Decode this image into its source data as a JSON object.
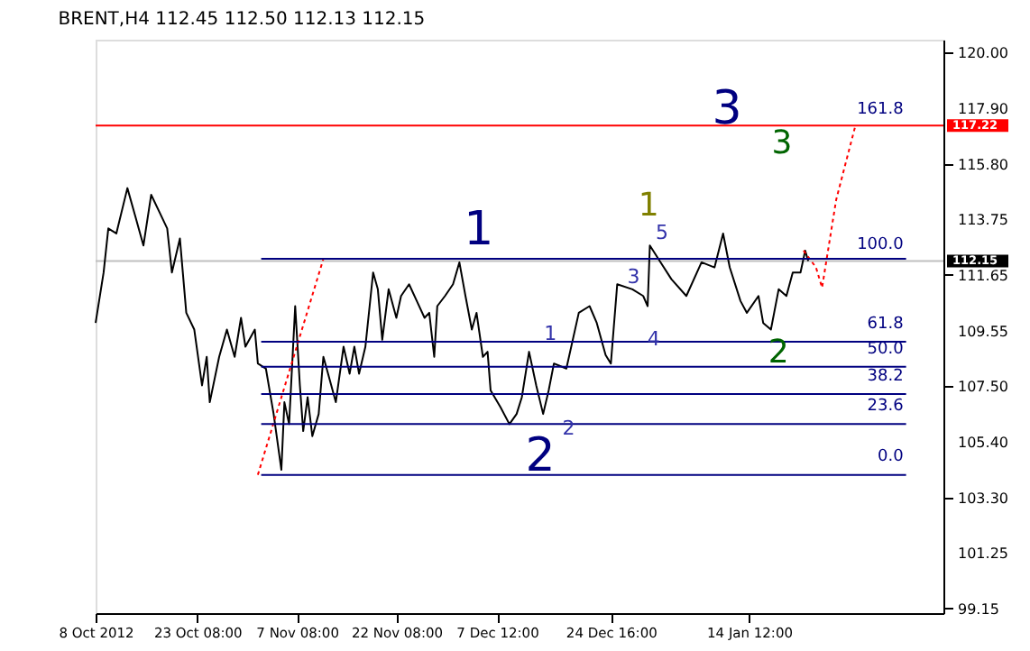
{
  "chart_data": {
    "type": "line",
    "title": "BRENT,H4  112.45 112.50 112.13 112.15",
    "xlim": [
      "2012-10-08T00:00",
      "2013-02-12T19:00"
    ],
    "ylim": [
      98.96,
      120.44
    ],
    "xticks": [
      {
        "value": "2012-10-08T00:00",
        "label": "8 Oct 2012"
      },
      {
        "value": "2012-10-23T08:00",
        "label": "23 Oct 08:00"
      },
      {
        "value": "2012-11-07T08:00",
        "label": "7 Nov 08:00"
      },
      {
        "value": "2012-11-22T08:00",
        "label": "22 Nov 08:00"
      },
      {
        "value": "2012-12-07T12:00",
        "label": "7 Dec 12:00"
      },
      {
        "value": "2012-12-24T16:00",
        "label": "24 Dec 16:00"
      },
      {
        "value": "2013-01-14T12:00",
        "label": "14 Jan 12:00"
      }
    ],
    "yticks": [
      {
        "value": 120,
        "label": "120.00"
      },
      {
        "value": 117.9,
        "label": "117.90"
      },
      {
        "value": 115.8,
        "label": "115.80"
      },
      {
        "value": 113.75,
        "label": "113.75"
      },
      {
        "value": 111.65,
        "label": "111.65"
      },
      {
        "value": 109.55,
        "label": "109.55"
      },
      {
        "value": 107.5,
        "label": "107.50"
      },
      {
        "value": 105.4,
        "label": "105.40"
      },
      {
        "value": 103.3,
        "label": "103.30"
      },
      {
        "value": 101.25,
        "label": "101.25"
      },
      {
        "value": 99.15,
        "label": "99.15"
      }
    ],
    "grid": false,
    "series": [
      {
        "color": "#000000",
        "line_style": "solid",
        "x": [
          "2012-10-08T00:00",
          "2012-10-09T05:00",
          "2012-10-09T22:00",
          "2012-10-11T03:00",
          "2012-10-12T19:00",
          "2012-10-14T00:00",
          "2012-10-15T05:00",
          "2012-10-16T09:00",
          "2012-10-17T14:00",
          "2012-10-18T19:00",
          "2012-10-19T12:00",
          "2012-10-20T17:00",
          "2012-10-21T16:00",
          "2012-10-22T21:00",
          "2012-10-24T01:00",
          "2012-10-24T18:00",
          "2012-10-25T05:00",
          "2012-10-26T15:00",
          "2012-10-27T19:00",
          "2012-10-28T23:00",
          "2012-10-29T22:00",
          "2012-10-30T14:00",
          "2012-11-01T00:00",
          "2012-11-01T11:00",
          "2012-11-02T16:00",
          "2012-11-03T20:00",
          "2012-11-05T00:00",
          "2012-11-05T11:00",
          "2012-11-06T04:00",
          "2012-11-07T02:00",
          "2012-11-07T19:00",
          "2012-11-08T07:00",
          "2012-11-08T23:00",
          "2012-11-09T16:00",
          "2012-11-10T15:00",
          "2012-11-11T08:00",
          "2012-11-12T01:00",
          "2012-11-13T05:00",
          "2012-11-14T09:00",
          "2012-11-15T07:00",
          "2012-11-16T00:00",
          "2012-11-16T17:00",
          "2012-11-17T16:00",
          "2012-11-18T20:00",
          "2012-11-19T13:00",
          "2012-11-20T05:00",
          "2012-11-21T04:00",
          "2012-11-22T08:00",
          "2012-11-23T01:00",
          "2012-11-24T06:00",
          "2012-11-25T10:00",
          "2012-11-26T14:00",
          "2012-11-27T07:00",
          "2012-11-28T01:00",
          "2012-11-28T12:00",
          "2012-11-29T16:00",
          "2012-11-30T21:00",
          "2012-12-01T20:00",
          "2012-12-02T18:00",
          "2012-12-03T17:00",
          "2012-12-04T10:00",
          "2012-12-05T09:00",
          "2012-12-06T02:00",
          "2012-12-06T13:00",
          "2012-12-08T01:00",
          "2012-12-09T09:00",
          "2012-12-10T11:00",
          "2012-12-11T06:00",
          "2012-12-12T08:00",
          "2012-12-13T10:00",
          "2012-12-14T11:00",
          "2012-12-15T07:00",
          "2012-12-16T02:00",
          "2012-12-17T23:00",
          "2012-12-19T20:00",
          "2012-12-21T11:00",
          "2012-12-22T13:00",
          "2012-12-23T21:00",
          "2012-12-24T16:00",
          "2012-12-25T15:00",
          "2012-12-27T22:00",
          "2012-12-29T13:00",
          "2012-12-30T05:00",
          "2012-12-30T13:00",
          "2013-01-01T04:00",
          "2013-01-02T19:00",
          "2013-01-05T01:00",
          "2013-01-07T08:00",
          "2013-01-09T07:00",
          "2013-01-10T14:00",
          "2013-01-11T14:00",
          "2013-01-13T05:00",
          "2013-01-14T04:00",
          "2013-01-15T22:00",
          "2013-01-16T15:00",
          "2013-01-17T19:00",
          "2013-01-18T23:00",
          "2013-01-20T03:00",
          "2013-01-21T02:00",
          "2013-01-22T06:00",
          "2013-01-22T23:00",
          "2013-01-23T10:00"
        ],
        "values": [
          109.83,
          111.72,
          113.37,
          113.18,
          114.88,
          113.81,
          112.73,
          114.63,
          114.0,
          113.37,
          111.72,
          112.99,
          110.21,
          109.58,
          107.49,
          108.56,
          106.86,
          108.56,
          109.58,
          108.56,
          110.02,
          108.94,
          109.58,
          108.31,
          108.12,
          106.42,
          104.33,
          106.86,
          106.04,
          110.46,
          107.49,
          105.78,
          107.05,
          105.59,
          106.42,
          108.56,
          107.93,
          106.86,
          108.94,
          107.93,
          108.94,
          107.93,
          108.94,
          111.72,
          111.09,
          109.2,
          111.09,
          110.02,
          110.84,
          111.28,
          110.65,
          110.02,
          110.21,
          108.56,
          110.46,
          110.84,
          111.28,
          112.1,
          110.84,
          109.58,
          110.21,
          108.56,
          108.75,
          107.3,
          106.67,
          106.04,
          106.42,
          107.05,
          108.75,
          107.49,
          106.42,
          107.3,
          108.31,
          108.12,
          110.21,
          110.46,
          109.83,
          108.63,
          108.31,
          111.28,
          111.09,
          110.84,
          110.46,
          112.73,
          112.1,
          111.47,
          110.84,
          112.1,
          111.91,
          113.18,
          111.91,
          110.65,
          110.21,
          110.84,
          109.83,
          109.58,
          111.09,
          110.84,
          111.72,
          111.72,
          112.54,
          112.15
        ]
      },
      {
        "color": "#ff0000",
        "line_style": "dotted",
        "x": [
          "2012-11-01T11:00",
          "2012-11-11T08:00"
        ],
        "values": [
          104.14,
          112.23
        ]
      },
      {
        "color": "#ff0000",
        "line_style": "dotted",
        "x": [
          "2013-01-22T17:00",
          "2013-01-24T14:00",
          "2013-01-25T12:00",
          "2013-01-27T15:00",
          "2013-01-30T11:00"
        ],
        "values": [
          112.54,
          111.91,
          111.15,
          114.44,
          117.16
        ]
      },
      {
        "color": "#000080",
        "line_style": "solid",
        "x": [
          "2012-11-01T23:00",
          "2013-02-07T04:00"
        ],
        "values": [
          112.23,
          112.23
        ]
      },
      {
        "color": "#000080",
        "line_style": "solid",
        "x": [
          "2012-11-01T23:00",
          "2013-02-07T04:00"
        ],
        "values": [
          109.13,
          109.13
        ]
      },
      {
        "color": "#000080",
        "line_style": "solid",
        "x": [
          "2012-11-01T23:00",
          "2013-02-07T04:00"
        ],
        "values": [
          108.19,
          108.19
        ]
      },
      {
        "color": "#000080",
        "line_style": "solid",
        "x": [
          "2012-11-01T23:00",
          "2013-02-07T04:00"
        ],
        "values": [
          107.17,
          107.17
        ]
      },
      {
        "color": "#000080",
        "line_style": "solid",
        "x": [
          "2012-11-01T23:00",
          "2013-02-07T04:00"
        ],
        "values": [
          106.04,
          106.04
        ]
      },
      {
        "color": "#000080",
        "line_style": "solid",
        "x": [
          "2012-11-01T23:00",
          "2013-02-07T04:00"
        ],
        "values": [
          104.14,
          104.14
        ]
      }
    ],
    "ref_lines": [
      {
        "axis": "y",
        "value": 117.22,
        "label": "117.22",
        "color": "#ff0000"
      },
      {
        "axis": "y",
        "value": 112.15,
        "label": "112.15",
        "color": "#c0c0c0"
      }
    ],
    "annotations": [
      "1",
      "2",
      "3",
      "1",
      "2",
      "3",
      "1",
      "2",
      "3",
      "4",
      "5",
      "161.8",
      "100.0",
      "61.8",
      "50.0",
      "38.2",
      "23.6",
      "0.0"
    ]
  }
}
